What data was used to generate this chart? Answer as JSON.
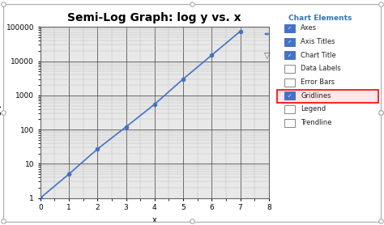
{
  "title": "Semi-Log Graph: log y vs. x",
  "xlabel": "x",
  "ylabel": "log y",
  "x_data": [
    0,
    1,
    2,
    3,
    4,
    5,
    6,
    7
  ],
  "y_data": [
    1,
    5,
    27,
    120,
    550,
    3000,
    15000,
    75000
  ],
  "xlim": [
    0,
    8
  ],
  "ylim": [
    1,
    100000
  ],
  "xticks": [
    0,
    1,
    2,
    3,
    4,
    5,
    6,
    7,
    8
  ],
  "yticks": [
    1,
    10,
    100,
    1000,
    10000,
    100000
  ],
  "line_color": "#4472C4",
  "marker": "o",
  "marker_size": 3,
  "bg_color": "#FFFFFF",
  "plot_bg": "#E8E8E8",
  "grid_major_color": "#555555",
  "grid_minor_color": "#BBBBBB",
  "title_fontsize": 10,
  "label_fontsize": 7,
  "tick_fontsize": 6.5,
  "sidebar_title": "Chart Elements",
  "sidebar_items": [
    "Axes",
    "Axis Titles",
    "Chart Title",
    "Data Labels",
    "Error Bars",
    "Gridlines",
    "Legend",
    "Trendline"
  ],
  "sidebar_checked": [
    true,
    true,
    true,
    false,
    false,
    true,
    false,
    false
  ],
  "sidebar_highlighted": "Gridlines",
  "sidebar_title_color": "#2E75B6",
  "check_color": "#4472C4",
  "icon_green": "#70AD47",
  "icon_border_red": "#FF0000"
}
